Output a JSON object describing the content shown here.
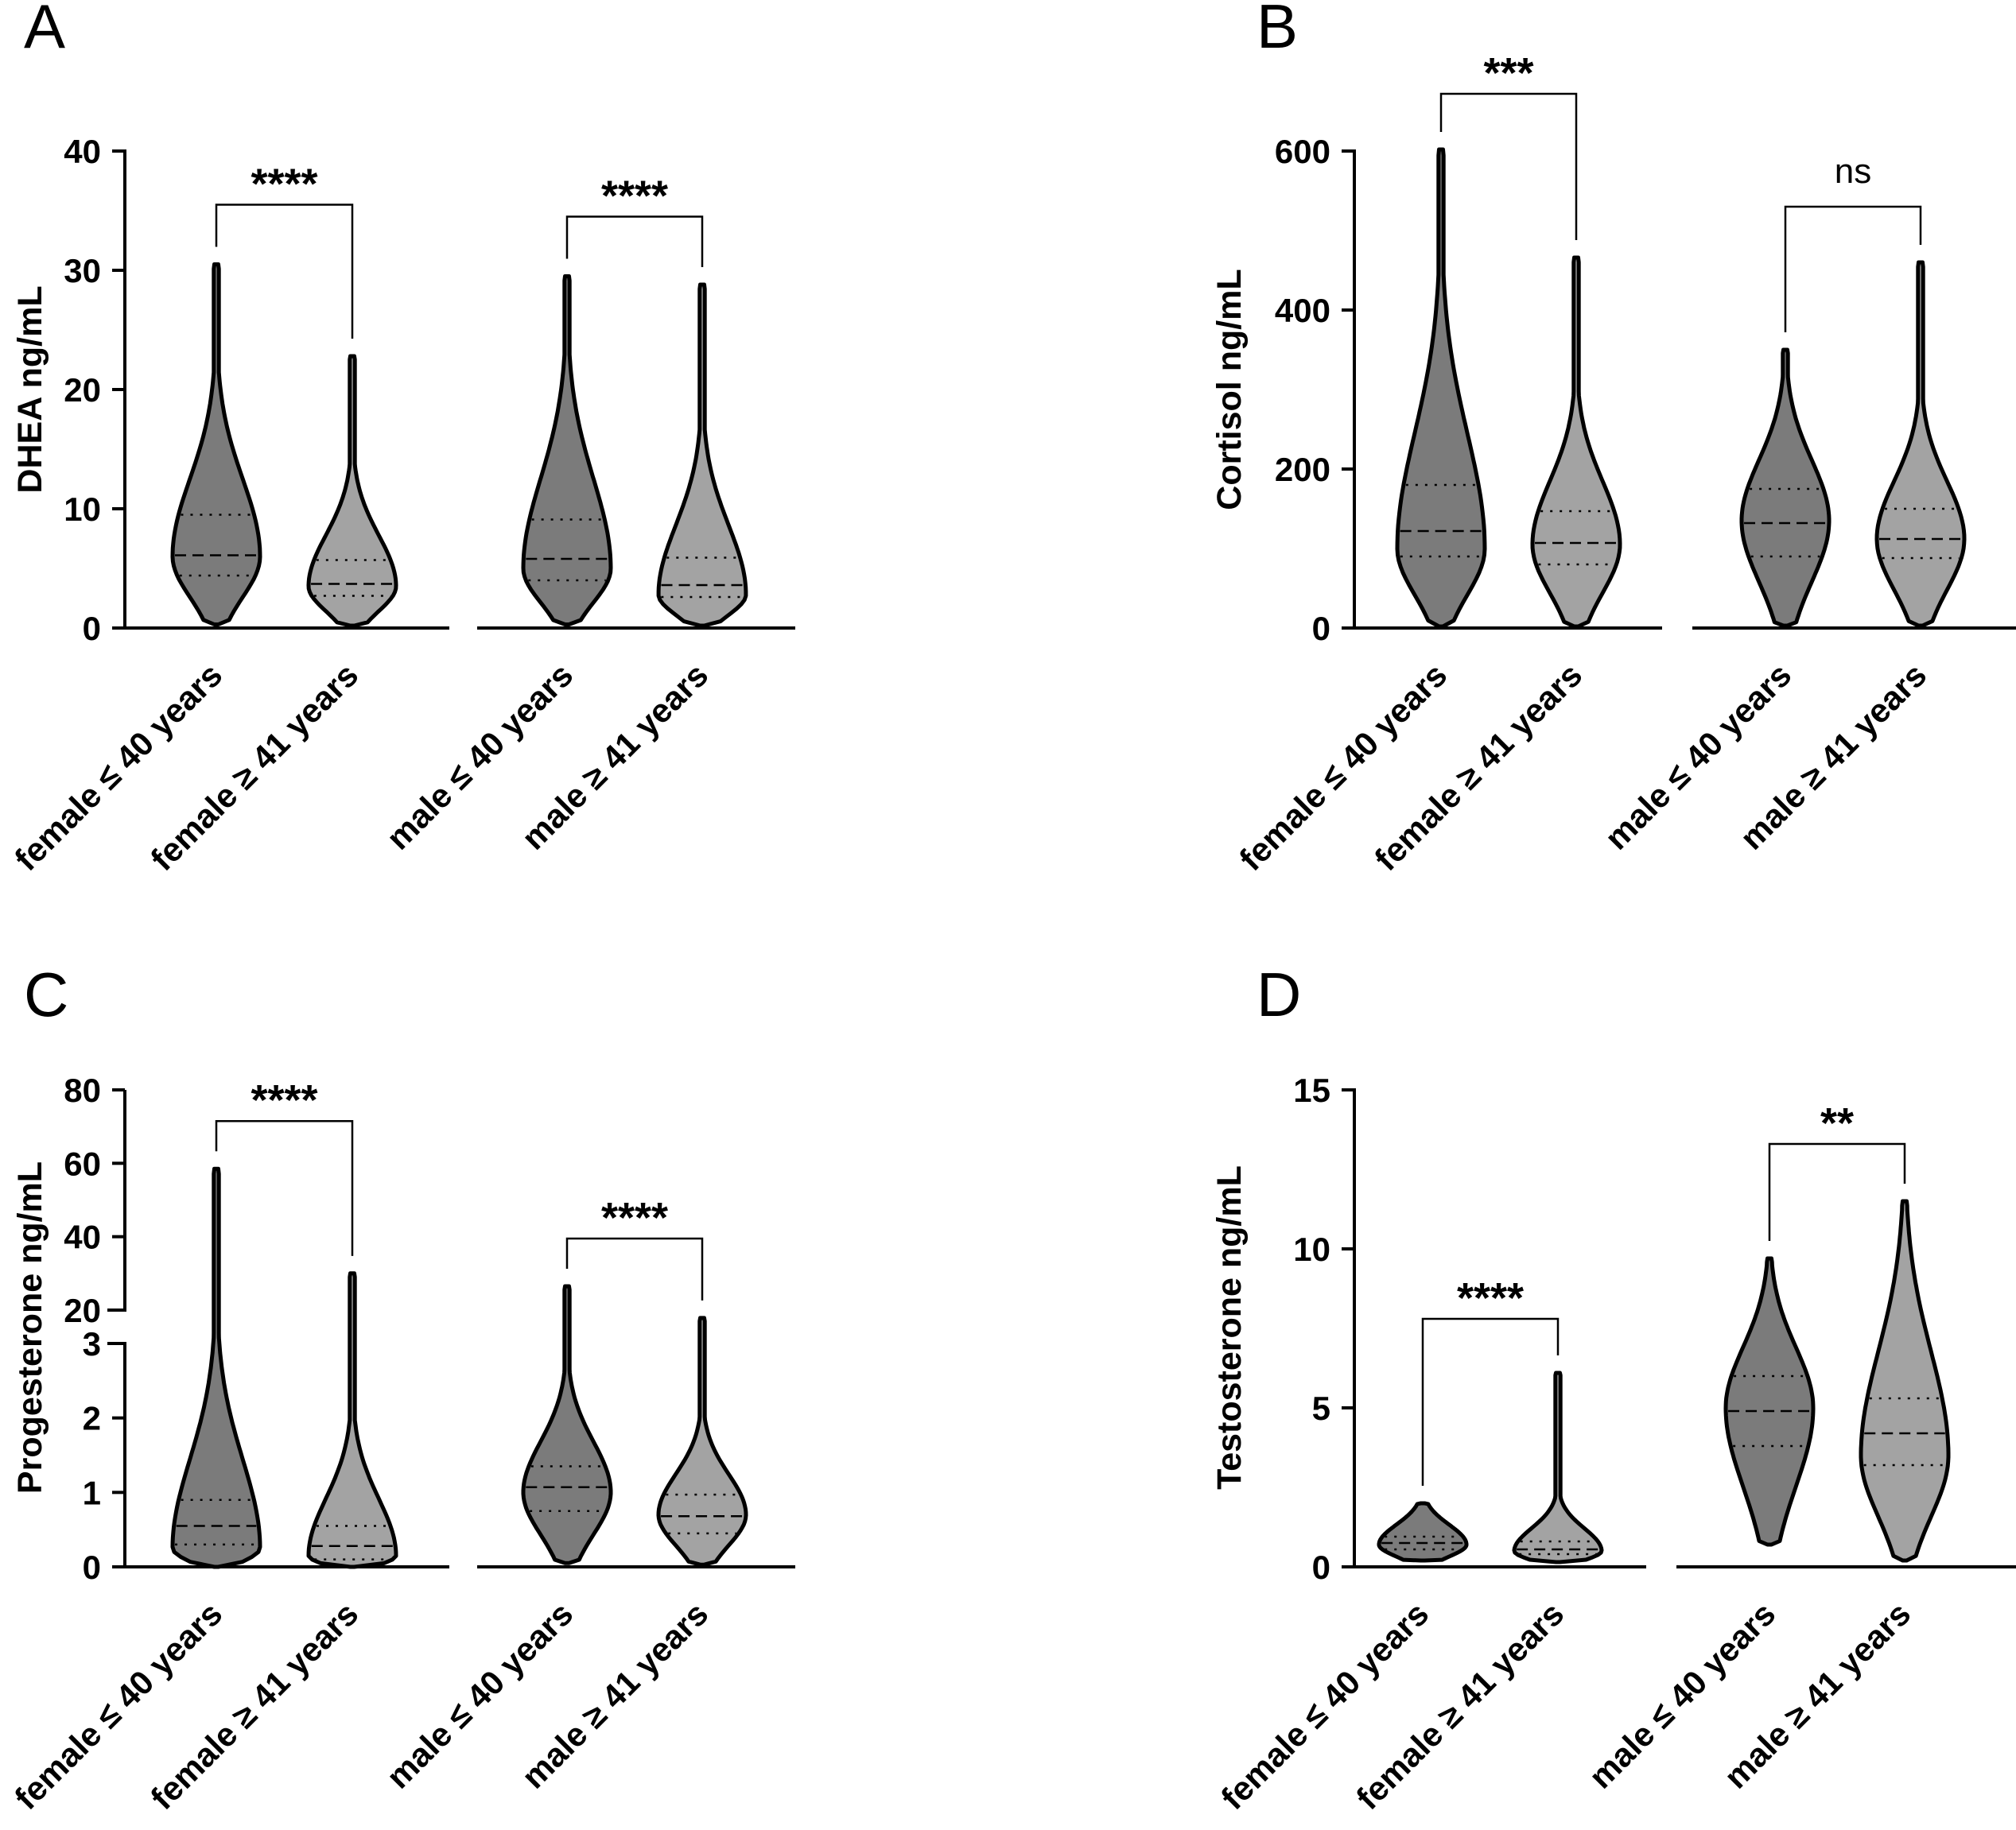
{
  "chart_data": [
    {
      "type": "violin",
      "panel_letter": "A",
      "ylabel": "DHEA ng/mL",
      "ylim": [
        0,
        40
      ],
      "yticks": [
        0,
        10,
        20,
        30,
        40
      ],
      "categories": [
        "female ≤ 40 years",
        "female ≥ 41 years",
        "male ≤ 40 years",
        "male ≥ 41 years"
      ],
      "series": [
        {
          "name": "female ≤ 40 years",
          "group": "female",
          "color": "#7b7b7b",
          "min": 0.3,
          "q1": 4.4,
          "median": 6.1,
          "q3": 9.5,
          "max": 30.5,
          "mode": 6.0
        },
        {
          "name": "female ≥ 41 years",
          "group": "female",
          "color": "#a3a3a3",
          "min": 0.2,
          "q1": 2.7,
          "median": 3.7,
          "q3": 5.7,
          "max": 22.8,
          "mode": 3.5
        },
        {
          "name": "male ≤ 40 years",
          "group": "male",
          "color": "#7b7b7b",
          "min": 0.3,
          "q1": 4.0,
          "median": 5.8,
          "q3": 9.1,
          "max": 29.5,
          "mode": 5.0
        },
        {
          "name": "male ≥ 41 years",
          "group": "male",
          "color": "#a3a3a3",
          "min": 0.2,
          "q1": 2.6,
          "median": 3.6,
          "q3": 5.9,
          "max": 28.8,
          "mode": 2.8
        }
      ],
      "comparisons": [
        {
          "pair": [
            0,
            1
          ],
          "label": "****",
          "y": 35.5
        },
        {
          "pair": [
            2,
            3
          ],
          "label": "****",
          "y": 34.5
        }
      ]
    },
    {
      "type": "violin",
      "panel_letter": "B",
      "ylabel": "Cortisol ng/mL",
      "ylim": [
        0,
        600
      ],
      "yticks": [
        0,
        200,
        400,
        600
      ],
      "categories": [
        "female ≤ 40 years",
        "female ≥ 41 years",
        "male ≤ 40 years",
        "male ≥ 41 years"
      ],
      "series": [
        {
          "name": "female ≤ 40 years",
          "group": "female",
          "color": "#7b7b7b",
          "min": 2,
          "q1": 90,
          "median": 122,
          "q3": 180,
          "max": 602,
          "mode": 100
        },
        {
          "name": "female ≥ 41 years",
          "group": "female",
          "color": "#a3a3a3",
          "min": 2,
          "q1": 80,
          "median": 107,
          "q3": 147,
          "max": 466,
          "mode": 105
        },
        {
          "name": "male ≤ 40 years",
          "group": "male",
          "color": "#7b7b7b",
          "min": 3,
          "q1": 90,
          "median": 132,
          "q3": 175,
          "max": 350,
          "mode": 135
        },
        {
          "name": "male ≥ 41 years",
          "group": "male",
          "color": "#a3a3a3",
          "min": 3,
          "q1": 88,
          "median": 112,
          "q3": 150,
          "max": 460,
          "mode": 112
        }
      ],
      "comparisons": [
        {
          "pair": [
            0,
            1
          ],
          "label": "***",
          "y": 672
        },
        {
          "pair": [
            2,
            3
          ],
          "label": "ns",
          "y": 530
        }
      ]
    },
    {
      "type": "violin",
      "panel_letter": "C",
      "ylabel": "Progesterone ng/mL",
      "scale": "broken",
      "ylim": [
        0,
        80
      ],
      "axis_break": [
        3,
        20
      ],
      "yticks_lower": [
        0,
        1,
        2,
        3
      ],
      "yticks_upper": [
        20,
        40,
        60,
        80
      ],
      "categories": [
        "female ≤ 40 years",
        "female ≥ 41 years",
        "male ≤ 40 years",
        "male ≥ 41 years"
      ],
      "series": [
        {
          "name": "female ≤ 40 years",
          "group": "female",
          "color": "#7b7b7b",
          "min": 0.0,
          "q1": 0.3,
          "median": 0.55,
          "q3": 0.9,
          "max": 58.5,
          "mode": 0.25
        },
        {
          "name": "female ≥ 41 years",
          "group": "female",
          "color": "#a3a3a3",
          "min": 0.0,
          "q1": 0.1,
          "median": 0.28,
          "q3": 0.55,
          "max": 30,
          "mode": 0.15
        },
        {
          "name": "male ≤ 40 years",
          "group": "male",
          "color": "#7b7b7b",
          "min": 0.05,
          "q1": 0.75,
          "median": 1.07,
          "q3": 1.35,
          "max": 26.5,
          "mode": 1.0
        },
        {
          "name": "male ≥ 41 years",
          "group": "male",
          "color": "#a3a3a3",
          "min": 0.03,
          "q1": 0.45,
          "median": 0.68,
          "q3": 0.97,
          "max": 16.0,
          "mode": 0.7
        }
      ],
      "comparisons": [
        {
          "pair": [
            0,
            1
          ],
          "label": "****",
          "y": 71.5
        },
        {
          "pair": [
            2,
            3
          ],
          "label": "****",
          "y": 39.5
        }
      ]
    },
    {
      "type": "violin",
      "panel_letter": "D",
      "ylabel": "Testosterone ng/mL",
      "ylim": [
        0,
        15
      ],
      "yticks": [
        0,
        5,
        10,
        15
      ],
      "categories": [
        "female ≤ 40 years",
        "female ≥ 41 years",
        "male ≤ 40 years",
        "male ≥ 41 years"
      ],
      "series": [
        {
          "name": "female ≤ 40 years",
          "group": "female",
          "color": "#7b7b7b",
          "min": 0.2,
          "q1": 0.55,
          "median": 0.75,
          "q3": 0.95,
          "max": 2.0,
          "mode": 0.7
        },
        {
          "name": "female ≥ 41 years",
          "group": "female",
          "color": "#a3a3a3",
          "min": 0.15,
          "q1": 0.4,
          "median": 0.55,
          "q3": 0.8,
          "max": 6.1,
          "mode": 0.5
        },
        {
          "name": "male ≤ 40 years",
          "group": "male",
          "color": "#7b7b7b",
          "min": 0.7,
          "q1": 3.8,
          "median": 4.9,
          "q3": 6.0,
          "max": 9.7,
          "mode": 5.0
        },
        {
          "name": "male ≥ 41 years",
          "group": "male",
          "color": "#a3a3a3",
          "min": 0.2,
          "q1": 3.2,
          "median": 4.2,
          "q3": 5.3,
          "max": 11.5,
          "mode": 3.5
        }
      ],
      "comparisons": [
        {
          "pair": [
            0,
            1
          ],
          "label": "****",
          "y": 7.8
        },
        {
          "pair": [
            2,
            3
          ],
          "label": "**",
          "y": 13.3
        }
      ]
    }
  ]
}
